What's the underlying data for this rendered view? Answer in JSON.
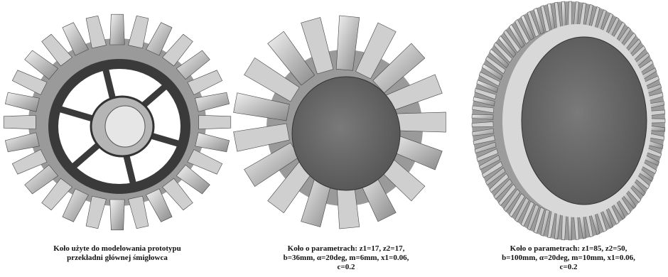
{
  "panels": [
    {
      "caption": [
        "Koło użyte do modelowania prototypu",
        "przekładni głównej śmigłowca"
      ]
    },
    {
      "caption": [
        "Koło o parametrach: z1=17, z2=17,",
        "b=36mm, α=20deg, m=6mm, x1=0.06,",
        "c=0.2"
      ]
    },
    {
      "caption": [
        "Koło o parametrach: z1=85, z2=50,",
        "b=100mm, α=20deg, m=10mm, x1=0.06,",
        "c=0.2"
      ]
    }
  ]
}
